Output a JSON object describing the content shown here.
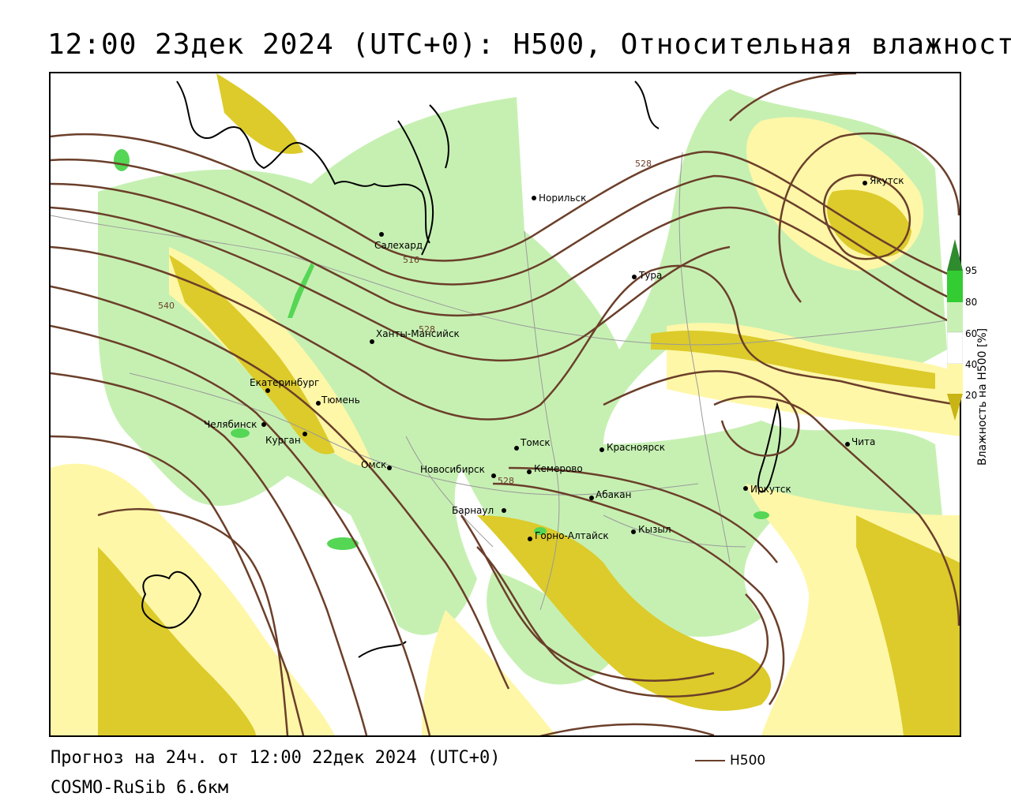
{
  "title": "12:00 23дек 2024 (UTC+0): H500, Относительная влажность",
  "footer": {
    "forecast": "Прогноз на 24ч. от 12:00 22дек 2024 (UTC+0)",
    "model": "COSMO-RuSib 6.6км"
  },
  "legend": {
    "line_label": "H500",
    "line_color": "#6b3f2a"
  },
  "colorbar": {
    "axis_label": "Влажность на H500 [%]",
    "ticks": [
      "95",
      "80",
      "60",
      "40",
      "20"
    ],
    "colors": [
      "#2e8b2e",
      "#33cc33",
      "#c8f0b4",
      "#ffffff",
      "#fff7a8",
      "#e8d84a",
      "#c8b414"
    ]
  },
  "colors": {
    "green_light": "#c6f0b2",
    "green_mid": "#55d655",
    "yellow_light": "#fff7a8",
    "yellow_dark": "#dccb2a",
    "contour": "#6b3f2a"
  },
  "contour_labels": [
    "516",
    "528",
    "540",
    "528",
    "528"
  ],
  "cities": [
    {
      "name": "Салехард"
    },
    {
      "name": "Норильск"
    },
    {
      "name": "Якутск"
    },
    {
      "name": "Тура"
    },
    {
      "name": "Ханты-Мансийск"
    },
    {
      "name": "Екатеринбург"
    },
    {
      "name": "Тюмень"
    },
    {
      "name": "Челябинск"
    },
    {
      "name": "Курган"
    },
    {
      "name": "Омск"
    },
    {
      "name": "Новосибирск"
    },
    {
      "name": "Томск"
    },
    {
      "name": "Кемерово"
    },
    {
      "name": "Красноярск"
    },
    {
      "name": "Барнаул"
    },
    {
      "name": "Абакан"
    },
    {
      "name": "Горно-Алтайск"
    },
    {
      "name": "Кызыл"
    },
    {
      "name": "Иркутск"
    },
    {
      "name": "Чита"
    }
  ]
}
